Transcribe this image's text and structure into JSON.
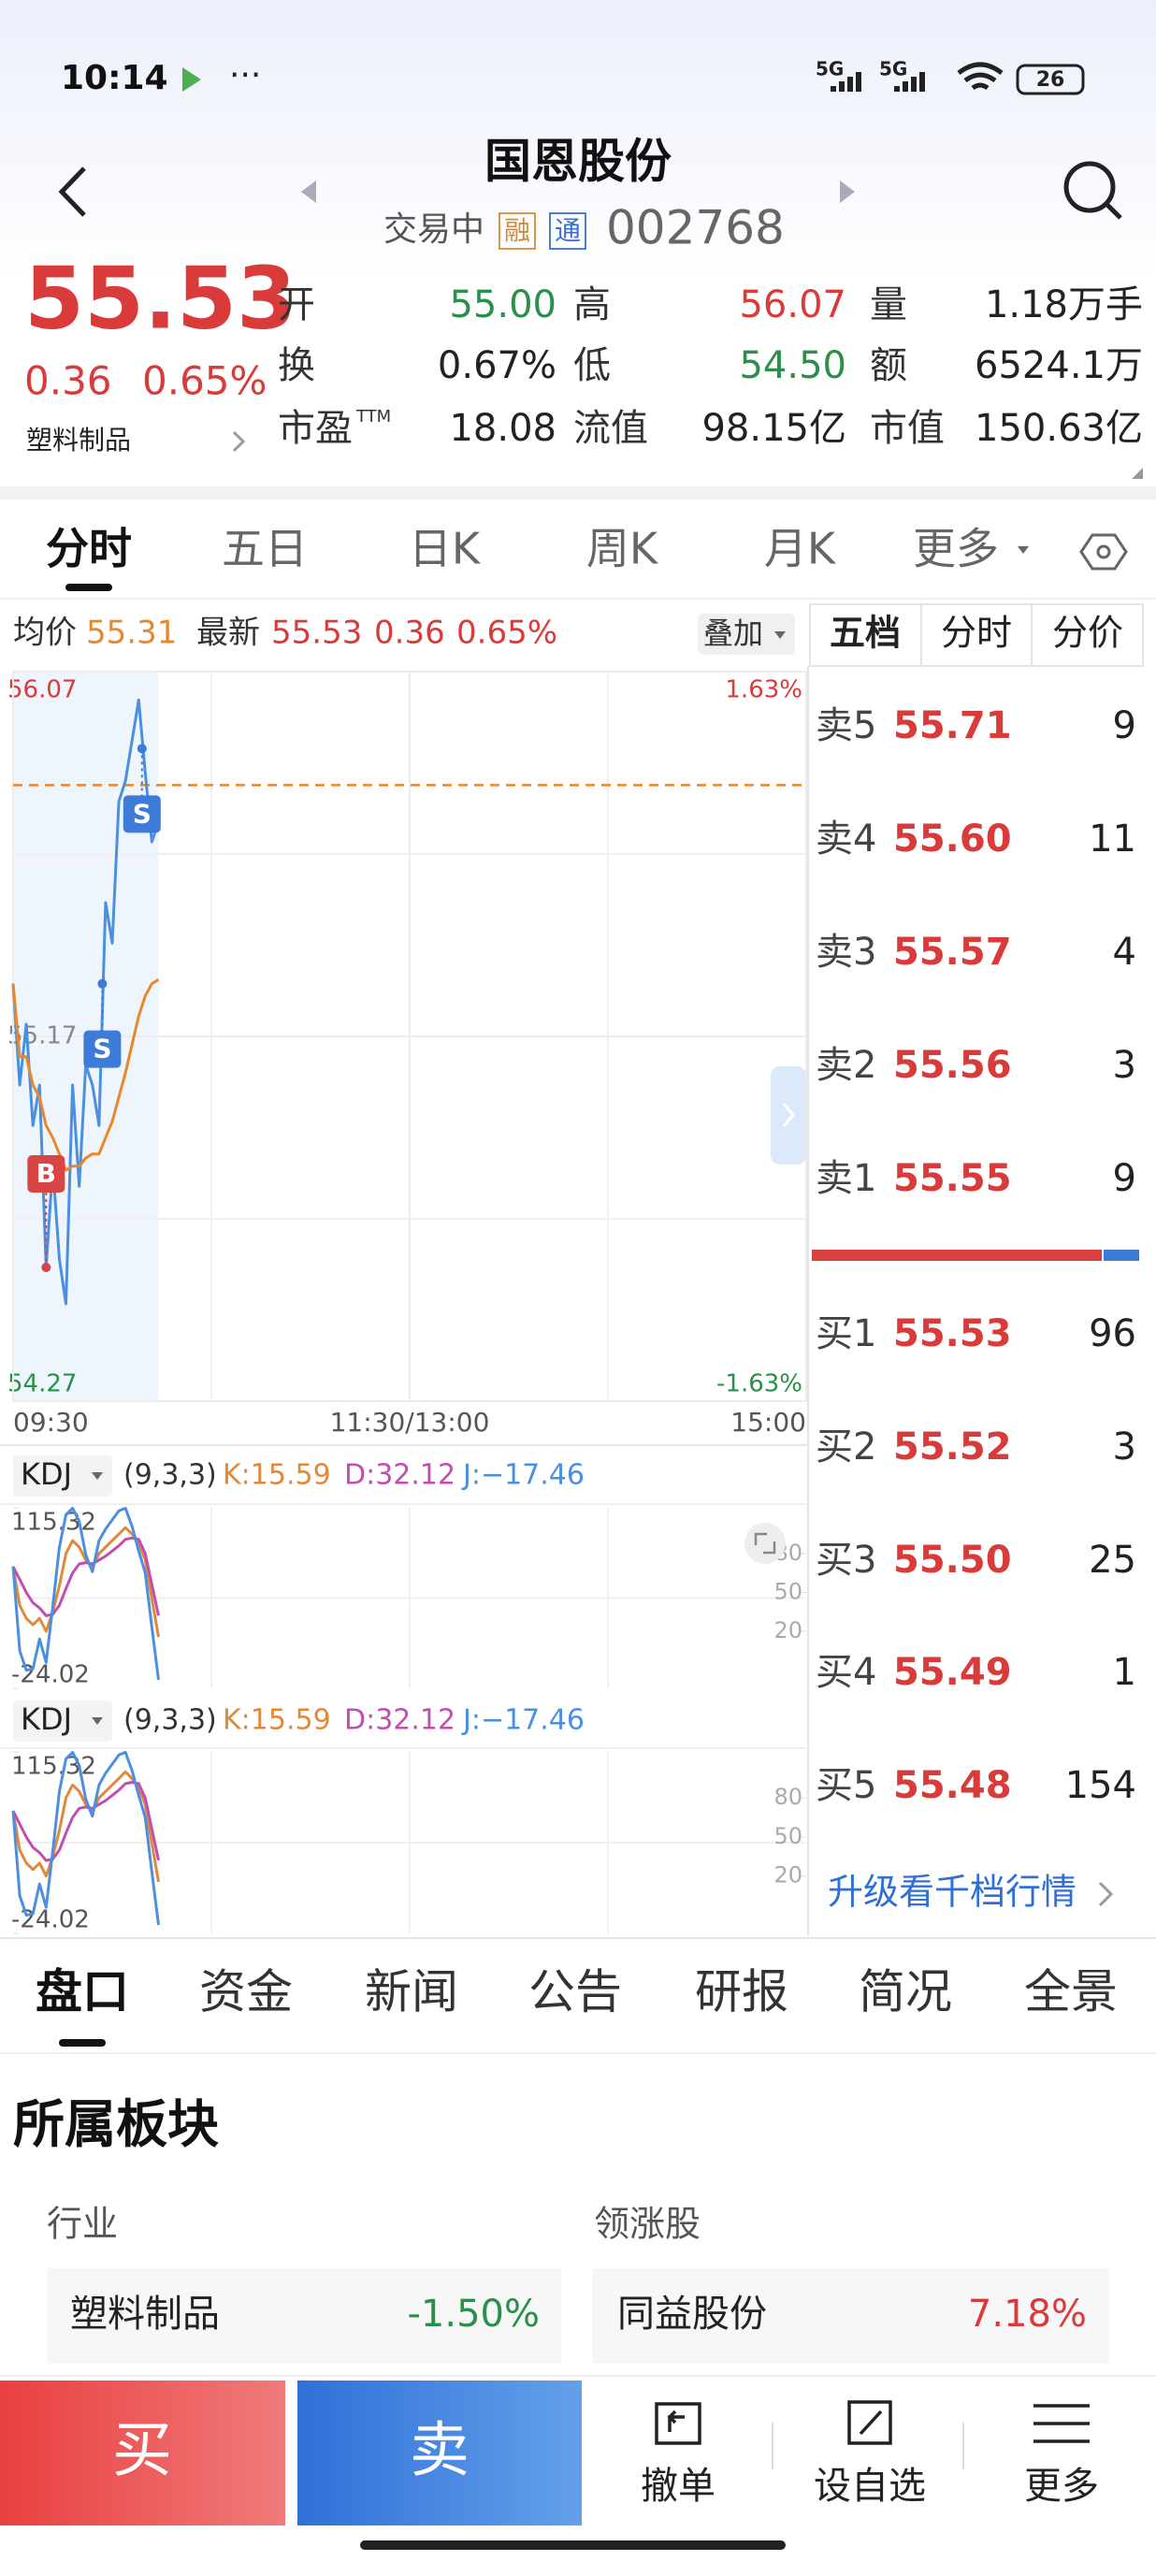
{
  "status_bar": {
    "time": "10:14",
    "net1": "5G",
    "net2": "5G",
    "battery": "26"
  },
  "header": {
    "title": "国恩股份",
    "status": "交易中",
    "badge1": "融",
    "badge2": "通",
    "code": "002768"
  },
  "quote": {
    "price": "55.53",
    "change": "0.36",
    "pct": "0.65%",
    "industry": "塑料制品",
    "stats": [
      [
        {
          "label": "开",
          "value": "55.00",
          "color": "#2a8f4a"
        },
        {
          "label": "高",
          "value": "56.07",
          "color": "#d93a3a"
        },
        {
          "label": "量",
          "value": "1.18万手",
          "color": "#222222"
        }
      ],
      [
        {
          "label": "换",
          "value": "0.67%",
          "color": "#222222"
        },
        {
          "label": "低",
          "value": "54.50",
          "color": "#2a8f4a"
        },
        {
          "label": "额",
          "value": "6524.1万",
          "color": "#222222"
        }
      ],
      [
        {
          "label": "市盈",
          "sup": "TTM",
          "value": "18.08",
          "color": "#222222"
        },
        {
          "label": "流值",
          "value": "98.15亿",
          "color": "#222222"
        },
        {
          "label": "市值",
          "value": "150.63亿",
          "color": "#222222"
        }
      ]
    ]
  },
  "tabs": [
    "分时",
    "五日",
    "日K",
    "周K",
    "月K",
    "更多"
  ],
  "info_bar": {
    "avg_label": "均价",
    "avg": "55.31",
    "latest_label": "最新",
    "latest": "55.53",
    "change": "0.36",
    "pct": "0.65%",
    "overlay": "叠加"
  },
  "chart_data": [
    {
      "type": "line",
      "x": [
        0,
        2,
        4,
        6,
        8,
        10,
        12,
        14,
        16,
        18,
        20,
        22,
        24,
        26,
        28,
        30,
        32,
        34,
        36,
        38,
        40,
        42,
        44
      ],
      "series": [
        {
          "color": "#4a8fe0",
          "values": [
            55.3,
            55.05,
            55.2,
            54.95,
            55.05,
            54.6,
            54.85,
            54.62,
            54.51,
            55.05,
            54.8,
            55.1,
            55.05,
            54.95,
            55.5,
            55.4,
            55.75,
            55.8,
            55.9,
            56.0,
            55.82,
            55.65,
            55.7
          ]
        },
        {
          "color": "#e8872b",
          "values": [
            55.3,
            55.12,
            55.12,
            55.05,
            55.02,
            54.95,
            54.92,
            54.88,
            54.84,
            54.85,
            54.85,
            54.87,
            54.88,
            54.88,
            54.92,
            54.96,
            55.02,
            55.08,
            55.15,
            55.22,
            55.27,
            55.3,
            55.31
          ]
        }
      ],
      "xlim": [
        0,
        240
      ],
      "xticks": [
        {
          "value": 0,
          "label": "09:30"
        },
        {
          "value": 120,
          "label": "11:30/13:00"
        },
        {
          "value": 240,
          "label": "15:00"
        }
      ],
      "ylim": [
        54.27,
        56.07
      ],
      "yticks": [
        56.07,
        55.17,
        54.27
      ],
      "y2lim": [
        -1.63,
        1.63
      ],
      "y2ticks": [
        {
          "value": 1.63,
          "label": "1.63%"
        },
        {
          "value": -1.63,
          "label": "-1.63%"
        }
      ],
      "ref_line": 55.79,
      "ref_color": "#e8872b",
      "markers": [
        {
          "label": "B",
          "x": 10,
          "value": 54.6,
          "color": "#d94545"
        },
        {
          "label": "S",
          "x": 27,
          "value": 55.3,
          "color": "#3d7bd9"
        },
        {
          "label": "S",
          "x": 39,
          "value": 55.88,
          "color": "#3d7bd9"
        }
      ],
      "grid": true
    },
    {
      "type": "line",
      "title": "KDJ",
      "params": "(9,3,3)",
      "x": [
        0,
        2,
        4,
        6,
        8,
        10,
        12,
        14,
        16,
        18,
        20,
        22,
        24,
        26,
        28,
        30,
        32,
        34,
        36,
        38,
        40,
        42,
        44
      ],
      "series": [
        {
          "name": "K:15.59",
          "color": "#e0893a",
          "values": [
            70,
            40,
            30,
            25,
            30,
            20,
            35,
            55,
            80,
            90,
            85,
            75,
            70,
            80,
            85,
            90,
            95,
            100,
            95,
            88,
            75,
            45,
            15.59
          ]
        },
        {
          "name": "D:32.12",
          "color": "#c04fb0",
          "values": [
            70,
            60,
            50,
            42,
            38,
            32,
            33,
            40,
            53,
            65,
            72,
            73,
            72,
            75,
            78,
            82,
            86,
            91,
            92,
            91,
            80,
            56,
            32.12
          ]
        },
        {
          "name": "J:−17.46",
          "color": "#4a8fe0",
          "values": [
            70,
            5,
            -10,
            -9,
            14,
            -4,
            39,
            85,
            110,
            115,
            105,
            79,
            66,
            90,
            99,
            106,
            113,
            115,
            101,
            82,
            65,
            23,
            -17.46
          ]
        }
      ],
      "xlim": [
        0,
        240
      ],
      "ylim": [
        -24.02,
        115.32
      ],
      "yticks": [
        115.32,
        -24.02
      ],
      "y2lim": [
        -24.02,
        115.32
      ],
      "y2ticks": [
        80,
        50,
        20
      ]
    }
  ],
  "order_book": {
    "tabs": [
      "五档",
      "分时",
      "分价"
    ],
    "asks": [
      {
        "label": "卖5",
        "price": "55.71",
        "volume": "9"
      },
      {
        "label": "卖4",
        "price": "55.60",
        "volume": "11"
      },
      {
        "label": "卖3",
        "price": "55.57",
        "volume": "4"
      },
      {
        "label": "卖2",
        "price": "55.56",
        "volume": "3"
      },
      {
        "label": "卖1",
        "price": "55.55",
        "volume": "9"
      }
    ],
    "bids": [
      {
        "label": "买1",
        "price": "55.53",
        "volume": "96"
      },
      {
        "label": "买2",
        "price": "55.52",
        "volume": "3"
      },
      {
        "label": "买3",
        "price": "55.50",
        "volume": "25"
      },
      {
        "label": "买4",
        "price": "55.49",
        "volume": "1"
      },
      {
        "label": "买5",
        "price": "55.48",
        "volume": "154"
      }
    ],
    "more": "升级看千档行情"
  },
  "bottom_tabs": [
    "盘口",
    "资金",
    "新闻",
    "公告",
    "研报",
    "简况",
    "全景"
  ],
  "sector": {
    "title": "所属板块",
    "industry_label": "行业",
    "leader_label": "领涨股",
    "industry": {
      "name": "塑料制品",
      "change": "-1.50%"
    },
    "leader": {
      "name": "同益股份",
      "change": "7.18%"
    }
  },
  "actions": {
    "buy": "买",
    "sell": "卖",
    "cancel": "撤单",
    "watch": "设自选",
    "more": "更多"
  }
}
